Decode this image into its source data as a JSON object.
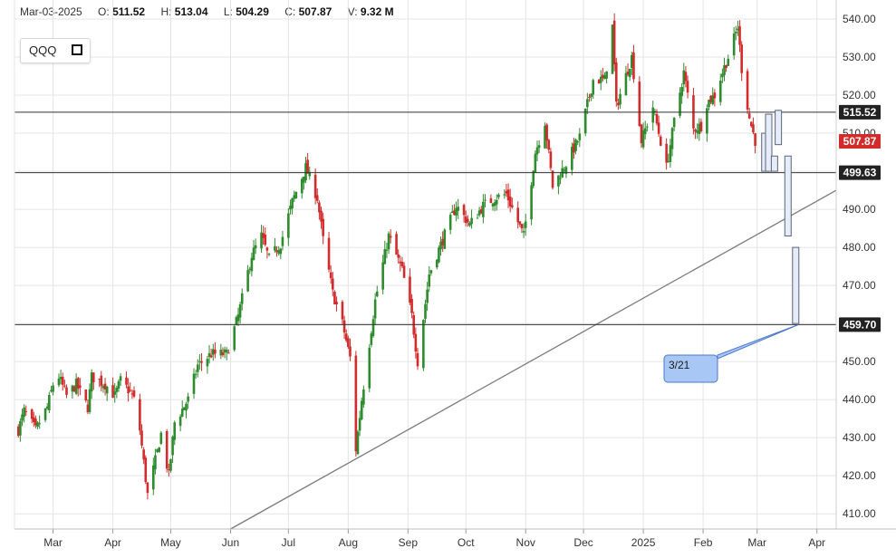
{
  "ohlc_bar": {
    "date": "Mar-03-2025",
    "open_label": "O:",
    "open": "511.52",
    "high_label": "H:",
    "high": "513.04",
    "low_label": "L:",
    "low": "504.29",
    "close_label": "C:",
    "close": "507.87",
    "volume_label": "V:",
    "volume": "9.32 M"
  },
  "ticker": {
    "symbol": "QQQ",
    "fullscreen_icon": "fullscreen-icon"
  },
  "colors": {
    "up": "#2e8b2e",
    "down": "#d22b2b",
    "grid": "#e4e4e4",
    "hline": "#333333",
    "trendline": "#7a7a7a",
    "projection_fill": "#e6ecf8",
    "projection_stroke": "#5a6478",
    "callout_fill": "#a9c7f5",
    "callout_stroke": "#4a78c8",
    "last_price": "#d22b2b",
    "level_label": "#222222"
  },
  "chart_data": {
    "type": "candlestick",
    "symbol": "QQQ",
    "ylim": [
      406,
      545
    ],
    "y_ticks": [
      410,
      420,
      430,
      440,
      450,
      460,
      470,
      480,
      490,
      500,
      510,
      520,
      530,
      540
    ],
    "x_range": [
      "2024-02-10",
      "2025-04-11"
    ],
    "x_ticks": [
      {
        "label": "Mar",
        "date": "2024-03-01"
      },
      {
        "label": "Apr",
        "date": "2024-04-01"
      },
      {
        "label": "May",
        "date": "2024-05-01"
      },
      {
        "label": "Jun",
        "date": "2024-06-01"
      },
      {
        "label": "Jul",
        "date": "2024-07-01"
      },
      {
        "label": "Aug",
        "date": "2024-08-01"
      },
      {
        "label": "Sep",
        "date": "2024-09-01"
      },
      {
        "label": "Oct",
        "date": "2024-10-01"
      },
      {
        "label": "Nov",
        "date": "2024-11-01"
      },
      {
        "label": "Dec",
        "date": "2024-12-01"
      },
      {
        "label": "2025",
        "date": "2025-01-01"
      },
      {
        "label": "Feb",
        "date": "2025-02-01"
      },
      {
        "label": "Mar",
        "date": "2025-03-01"
      },
      {
        "label": "Apr",
        "date": "2025-04-01"
      }
    ],
    "grid": true,
    "price_path": [
      [
        "2024-02-12",
        432
      ],
      [
        "2024-02-15",
        437
      ],
      [
        "2024-02-21",
        432
      ],
      [
        "2024-02-27",
        438
      ],
      [
        "2024-03-01",
        444
      ],
      [
        "2024-03-04",
        446
      ],
      [
        "2024-03-08",
        441
      ],
      [
        "2024-03-13",
        444
      ],
      [
        "2024-03-19",
        438
      ],
      [
        "2024-03-21",
        446
      ],
      [
        "2024-03-28",
        444
      ],
      [
        "2024-04-02",
        441
      ],
      [
        "2024-04-05",
        445
      ],
      [
        "2024-04-10",
        442
      ],
      [
        "2024-04-12",
        440
      ],
      [
        "2024-04-15",
        432
      ],
      [
        "2024-04-19",
        415
      ],
      [
        "2024-04-23",
        424
      ],
      [
        "2024-04-26",
        431
      ],
      [
        "2024-04-30",
        420
      ],
      [
        "2024-05-03",
        434
      ],
      [
        "2024-05-10",
        440
      ],
      [
        "2024-05-15",
        449
      ],
      [
        "2024-05-22",
        452
      ],
      [
        "2024-05-30",
        452
      ],
      [
        "2024-06-05",
        462
      ],
      [
        "2024-06-12",
        478
      ],
      [
        "2024-06-17",
        483
      ],
      [
        "2024-06-21",
        477
      ],
      [
        "2024-06-27",
        481
      ],
      [
        "2024-07-03",
        492
      ],
      [
        "2024-07-10",
        501
      ],
      [
        "2024-07-16",
        493
      ],
      [
        "2024-07-19",
        482
      ],
      [
        "2024-07-24",
        468
      ],
      [
        "2024-07-29",
        460
      ],
      [
        "2024-08-02",
        451
      ],
      [
        "2024-08-05",
        427
      ],
      [
        "2024-08-08",
        440
      ],
      [
        "2024-08-15",
        466
      ],
      [
        "2024-08-22",
        483
      ],
      [
        "2024-08-29",
        474
      ],
      [
        "2024-09-03",
        462
      ],
      [
        "2024-09-06",
        450
      ],
      [
        "2024-09-12",
        473
      ],
      [
        "2024-09-19",
        482
      ],
      [
        "2024-09-26",
        491
      ],
      [
        "2024-10-03",
        486
      ],
      [
        "2024-10-10",
        491
      ],
      [
        "2024-10-16",
        493
      ],
      [
        "2024-10-22",
        494
      ],
      [
        "2024-10-31",
        483
      ],
      [
        "2024-11-06",
        505
      ],
      [
        "2024-11-11",
        513
      ],
      [
        "2024-11-15",
        496
      ],
      [
        "2024-11-22",
        502
      ],
      [
        "2024-11-29",
        509
      ],
      [
        "2024-12-06",
        524
      ],
      [
        "2024-12-12",
        524
      ],
      [
        "2024-12-16",
        538
      ],
      [
        "2024-12-18",
        517
      ],
      [
        "2024-12-26",
        530
      ],
      [
        "2024-12-31",
        508
      ],
      [
        "2025-01-06",
        517
      ],
      [
        "2025-01-13",
        501
      ],
      [
        "2025-01-17",
        513
      ],
      [
        "2025-01-22",
        526
      ],
      [
        "2025-01-27",
        511
      ],
      [
        "2025-01-31",
        512
      ],
      [
        "2025-02-03",
        518
      ],
      [
        "2025-02-07",
        520
      ],
      [
        "2025-02-11",
        526
      ],
      [
        "2025-02-14",
        530
      ],
      [
        "2025-02-19",
        538
      ],
      [
        "2025-02-21",
        527
      ],
      [
        "2025-02-25",
        514
      ],
      [
        "2025-02-28",
        508
      ],
      [
        "2025-03-03",
        507.87
      ]
    ],
    "horizontal_levels": [
      {
        "value": 515.52,
        "label": "515.52"
      },
      {
        "value": 499.63,
        "label": "499.63"
      },
      {
        "value": 459.7,
        "label": "459.70"
      }
    ],
    "last_price": {
      "value": 507.87,
      "label": "507.87"
    },
    "trendline": {
      "from": [
        "2024-06-01",
        406
      ],
      "to": [
        "2025-04-11",
        495
      ]
    },
    "projection": [
      {
        "date": "2025-03-05",
        "open": 510,
        "close": 500
      },
      {
        "date": "2025-03-07",
        "open": 500,
        "close": 515
      },
      {
        "date": "2025-03-10",
        "open": 504,
        "close": 500
      },
      {
        "date": "2025-03-12",
        "open": 507,
        "close": 516
      },
      {
        "date": "2025-03-17",
        "open": 504,
        "close": 483
      },
      {
        "date": "2025-03-21",
        "open": 480,
        "close": 460
      }
    ],
    "annotation": {
      "text": "3/21",
      "date": "2025-03-21",
      "value": 459.7
    }
  }
}
